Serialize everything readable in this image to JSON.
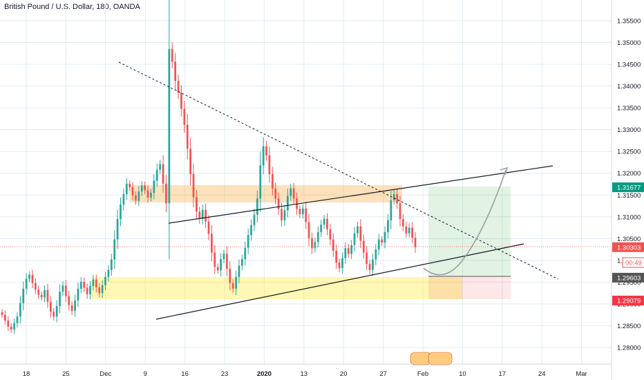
{
  "title": "British Pound / U.S. Dollar, 180, OANDA",
  "colors": {
    "up": "#26a69a",
    "down": "#ef5350",
    "grid": "#e1ecf2",
    "axis_text": "#131722",
    "current_line": "#ef5350"
  },
  "chart_data": {
    "type": "candlestick",
    "symbol": "GBPUSD",
    "interval": "180",
    "source": "OANDA",
    "ylim": [
      1.2765,
      1.3575
    ],
    "y_ticks": [
      "1.28000",
      "1.28500",
      "1.29000",
      "1.29500",
      "1.30000",
      "1.30500",
      "1.31000",
      "1.31500",
      "1.32000",
      "1.32500",
      "1.33000",
      "1.33500",
      "1.34000",
      "1.34500",
      "1.35000",
      "1.35500"
    ],
    "x_ticks": [
      "18",
      "25",
      "Dec",
      "9",
      "16",
      "23",
      "2020",
      "13",
      "20",
      "27",
      "Feb",
      "10",
      "17",
      "24",
      "Mar"
    ],
    "price_labels": [
      {
        "label": "1.31677",
        "value": 1.31677,
        "color": "#089981",
        "kind": "target"
      },
      {
        "label": "1.30303",
        "value": 1.30303,
        "color": "#ef5350",
        "kind": "current"
      },
      {
        "label": "00:49",
        "value": 1.2995,
        "color": "#ef5350",
        "kind": "countdown"
      },
      {
        "label": "1.29603",
        "value": 1.29603,
        "color": "#555555",
        "kind": "entry"
      },
      {
        "label": "1.29079",
        "value": 1.29079,
        "color": "#f23645",
        "kind": "stop"
      }
    ],
    "closes": [
      1.2875,
      1.2862,
      1.2848,
      1.2841,
      1.2856,
      1.2871,
      1.2902,
      1.2935,
      1.2958,
      1.2967,
      1.2948,
      1.2933,
      1.2921,
      1.2915,
      1.2932,
      1.2905,
      1.2882,
      1.2871,
      1.2895,
      1.2928,
      1.2942,
      1.2918,
      1.2897,
      1.2884,
      1.2908,
      1.2935,
      1.2951,
      1.2937,
      1.2922,
      1.2941,
      1.2956,
      1.2938,
      1.2925,
      1.2943,
      1.2962,
      1.2978,
      1.3002,
      1.3048,
      1.3095,
      1.3128,
      1.3152,
      1.3176,
      1.3168,
      1.3149,
      1.3137,
      1.3158,
      1.3172,
      1.3161,
      1.3144,
      1.3155,
      1.3183,
      1.3208,
      1.3221,
      1.3176,
      1.3131,
      1.3485,
      1.3456,
      1.3412,
      1.3385,
      1.3348,
      1.3311,
      1.3256,
      1.3198,
      1.3145,
      1.3112,
      1.3095,
      1.3116,
      1.3089,
      1.3061,
      1.3018,
      1.2985,
      1.2977,
      1.3003,
      1.3015,
      1.2981,
      1.2948,
      1.2935,
      1.2962,
      1.2988,
      1.3003,
      1.3029,
      1.3058,
      1.3081,
      1.3105,
      1.3142,
      1.3218,
      1.3262,
      1.3241,
      1.3198,
      1.3165,
      1.3142,
      1.3118,
      1.3092,
      1.3115,
      1.3148,
      1.3165,
      1.3142,
      1.3118,
      1.3106,
      1.3119,
      1.3088,
      1.3051,
      1.3028,
      1.3042,
      1.3065,
      1.3082,
      1.3095,
      1.3071,
      1.3048,
      1.3022,
      1.2995,
      1.2982,
      1.3005,
      1.3028,
      1.3015,
      1.3035,
      1.3062,
      1.3078,
      1.3045,
      1.3018,
      1.2992,
      1.2978,
      1.3002,
      1.3025,
      1.3048,
      1.3041,
      1.3065,
      1.3092,
      1.3138,
      1.3152,
      1.3131,
      1.3095,
      1.3078,
      1.3062,
      1.3075,
      1.3052,
      1.303
    ]
  }
}
